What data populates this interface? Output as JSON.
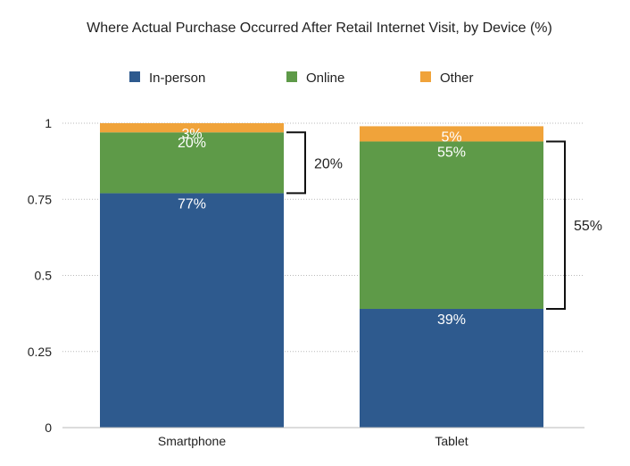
{
  "chart_data": {
    "type": "bar",
    "stacked": true,
    "title": "Where Actual Purchase Occurred After Retail Internet Visit, by Device (%)",
    "categories": [
      "Smartphone",
      "Tablet"
    ],
    "series": [
      {
        "name": "In-person",
        "values": [
          0.77,
          0.39
        ],
        "labels": [
          "77%",
          "39%"
        ],
        "color": "#2e5a8e"
      },
      {
        "name": "Online",
        "values": [
          0.2,
          0.55
        ],
        "labels": [
          "20%",
          "55%"
        ],
        "color": "#5e9a48"
      },
      {
        "name": "Other",
        "values": [
          0.03,
          0.05
        ],
        "labels": [
          "3%",
          "5%"
        ],
        "color": "#f0a33a"
      }
    ],
    "ylim": [
      0,
      1
    ],
    "yticks": [
      {
        "value": 0,
        "label": "0"
      },
      {
        "value": 0.25,
        "label": "0.25"
      },
      {
        "value": 0.5,
        "label": "0.5"
      },
      {
        "value": 0.75,
        "label": "0.75"
      },
      {
        "value": 1,
        "label": "1"
      }
    ],
    "grid": true,
    "legend_position": "top",
    "annotations": [
      {
        "category": "Smartphone",
        "series": "Online",
        "label": "20%"
      },
      {
        "category": "Tablet",
        "series": "Online",
        "label": "55%"
      }
    ]
  }
}
